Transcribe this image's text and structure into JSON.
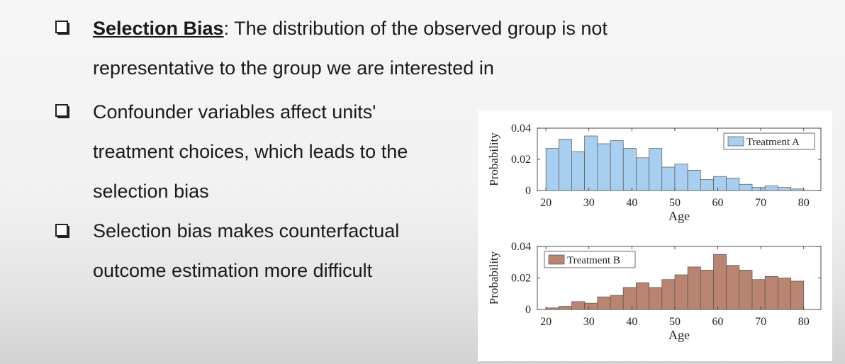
{
  "bullets": [
    {
      "term": "Selection Bias",
      "lines": [
        ": The distribution of the observed group is not",
        "representative to the group we are interested in"
      ]
    },
    {
      "lines": [
        "Confounder variables affect units'",
        "treatment choices, which leads to the",
        "selection bias"
      ]
    },
    {
      "lines": [
        "Selection bias makes counterfactual",
        "outcome estimation more difficult"
      ]
    }
  ],
  "chart_data": [
    {
      "type": "bar",
      "xlabel": "Age",
      "ylabel": "Probability",
      "xlim": [
        18,
        84
      ],
      "ylim": [
        0,
        0.04
      ],
      "yticks": [
        "0",
        "0.02",
        "0.04"
      ],
      "xticks": [
        "20",
        "30",
        "40",
        "50",
        "60",
        "70",
        "80"
      ],
      "bin_width": 3,
      "bin_start": 20,
      "legend": "Treatment A",
      "legend_position": "top-right",
      "color": "#a8cff0",
      "values": [
        0.027,
        0.033,
        0.025,
        0.035,
        0.03,
        0.032,
        0.027,
        0.021,
        0.027,
        0.015,
        0.017,
        0.013,
        0.007,
        0.009,
        0.008,
        0.004,
        0.002,
        0.003,
        0.002,
        0.001
      ]
    },
    {
      "type": "bar",
      "xlabel": "Age",
      "ylabel": "Probability",
      "xlim": [
        18,
        84
      ],
      "ylim": [
        0,
        0.04
      ],
      "yticks": [
        "0",
        "0.02",
        "0.04"
      ],
      "xticks": [
        "20",
        "30",
        "40",
        "50",
        "60",
        "70",
        "80"
      ],
      "bin_width": 3,
      "bin_start": 20,
      "legend": "Treatment B",
      "legend_position": "top-left",
      "color": "#b98470",
      "values": [
        0.001,
        0.002,
        0.005,
        0.004,
        0.008,
        0.009,
        0.014,
        0.017,
        0.014,
        0.019,
        0.022,
        0.027,
        0.025,
        0.035,
        0.028,
        0.025,
        0.019,
        0.021,
        0.02,
        0.018
      ]
    }
  ]
}
